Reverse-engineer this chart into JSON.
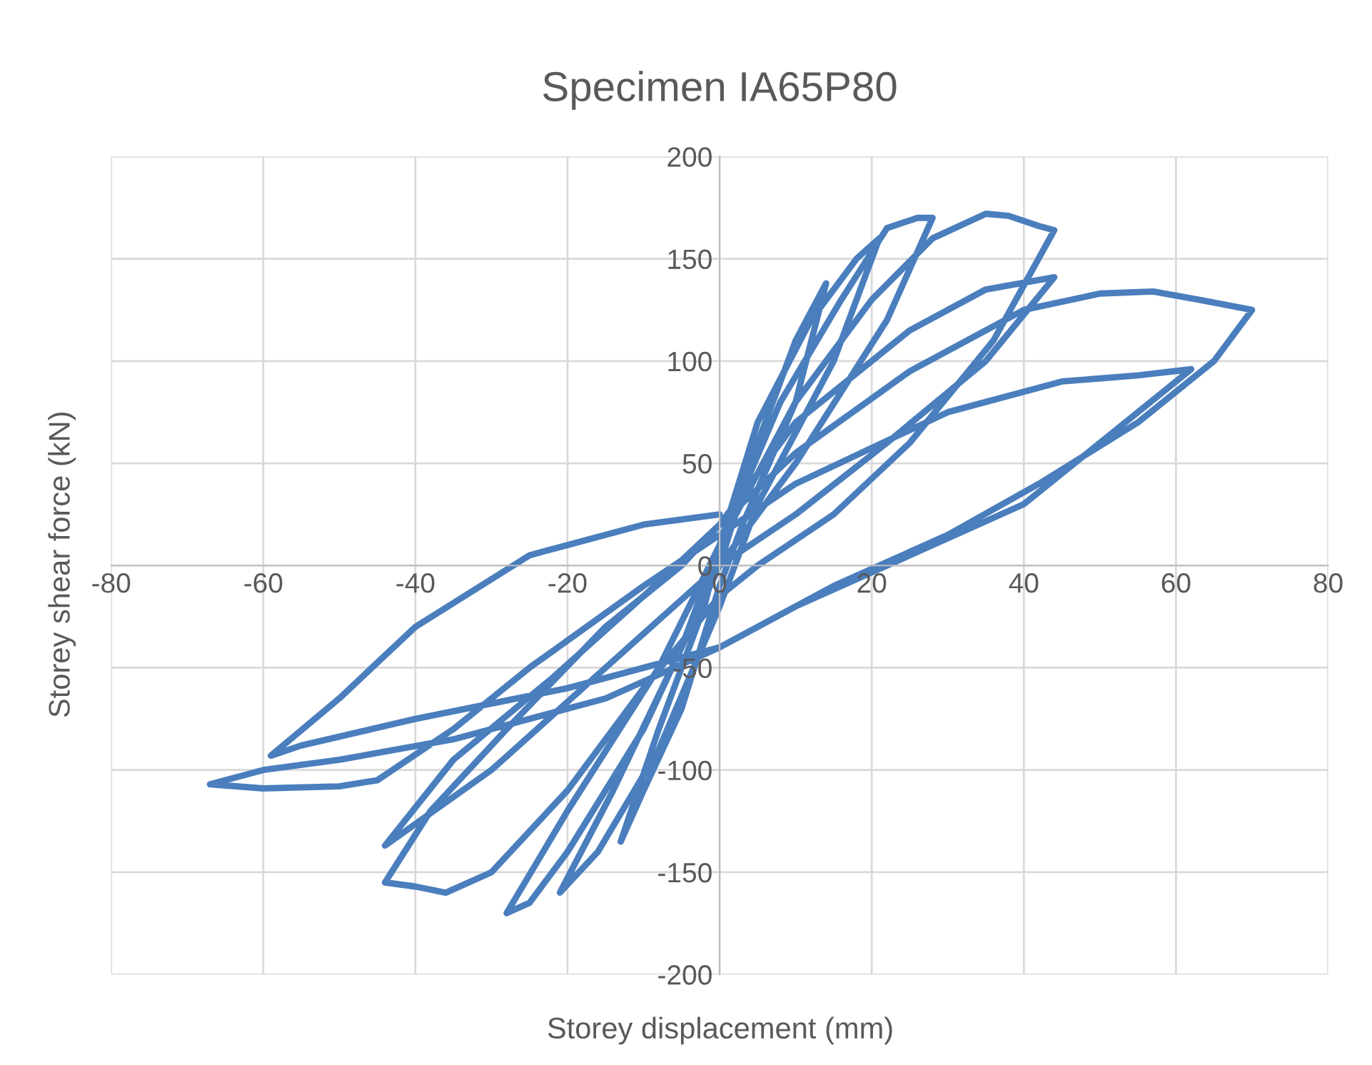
{
  "chart_data": {
    "type": "line",
    "title": "Specimen IA65P80",
    "xlabel": "Storey displacement (mm)",
    "ylabel": "Storey shear force (kN)",
    "xlim": [
      -80,
      80
    ],
    "xticks": [
      -80,
      -60,
      -40,
      -20,
      0,
      20,
      40,
      60,
      80
    ],
    "ylim": [
      -200,
      200
    ],
    "yticks": [
      -200,
      -150,
      -100,
      -50,
      0,
      50,
      100,
      150,
      200
    ],
    "grid": true,
    "legend": false,
    "marker": "none",
    "line_style": "solid",
    "series": [
      {
        "color": "#4a7ebd",
        "x": [
          0,
          5,
          10,
          14,
          10,
          3,
          0,
          -5,
          -10,
          -13,
          -8,
          -2,
          0,
          5,
          12,
          18,
          21,
          15,
          5,
          0,
          -8,
          -16,
          -21,
          -14,
          -5,
          0,
          8,
          16,
          22,
          26,
          28,
          22,
          10,
          0,
          -10,
          -20,
          -25,
          -28,
          -20,
          -8,
          0,
          10,
          20,
          28,
          35,
          38,
          42,
          44,
          36,
          25,
          15,
          5,
          0,
          -10,
          -20,
          -30,
          -36,
          -40,
          -44,
          -38,
          -28,
          -15,
          -5,
          0,
          10,
          25,
          35,
          44,
          35,
          22,
          10,
          0,
          -15,
          -30,
          -44,
          -35,
          -22,
          -10,
          0,
          10,
          25,
          40,
          50,
          57,
          63,
          70,
          65,
          55,
          42,
          30,
          15,
          0,
          -15,
          -35,
          -50,
          -60,
          -67,
          -60,
          -50,
          -45,
          -35,
          -25,
          -10,
          0,
          10,
          30,
          45,
          55,
          62,
          50,
          40,
          25,
          10,
          0,
          -20,
          -40,
          -55,
          -59,
          -50,
          -40,
          -25,
          -10,
          0
        ],
        "values": [
          0,
          60,
          110,
          138,
          80,
          20,
          -10,
          -70,
          -110,
          -135,
          -80,
          -20,
          10,
          70,
          120,
          150,
          160,
          100,
          30,
          -20,
          -90,
          -140,
          -160,
          -110,
          -40,
          10,
          80,
          130,
          165,
          170,
          170,
          120,
          50,
          0,
          -80,
          -140,
          -165,
          -170,
          -120,
          -50,
          10,
          80,
          130,
          160,
          172,
          171,
          166,
          164,
          110,
          60,
          25,
          0,
          -15,
          -60,
          -110,
          -150,
          -160,
          -157,
          -155,
          -120,
          -80,
          -30,
          0,
          20,
          70,
          115,
          135,
          141,
          100,
          60,
          25,
          0,
          -50,
          -100,
          -137,
          -95,
          -55,
          -15,
          20,
          55,
          95,
          125,
          133,
          134,
          130,
          125,
          100,
          70,
          40,
          15,
          -10,
          -40,
          -65,
          -85,
          -95,
          -100,
          -107,
          -109,
          -108,
          -105,
          -80,
          -50,
          -10,
          15,
          40,
          75,
          90,
          93,
          96,
          60,
          30,
          5,
          -20,
          -40,
          -60,
          -75,
          -88,
          -93,
          -65,
          -30,
          5,
          20,
          25
        ]
      }
    ]
  }
}
